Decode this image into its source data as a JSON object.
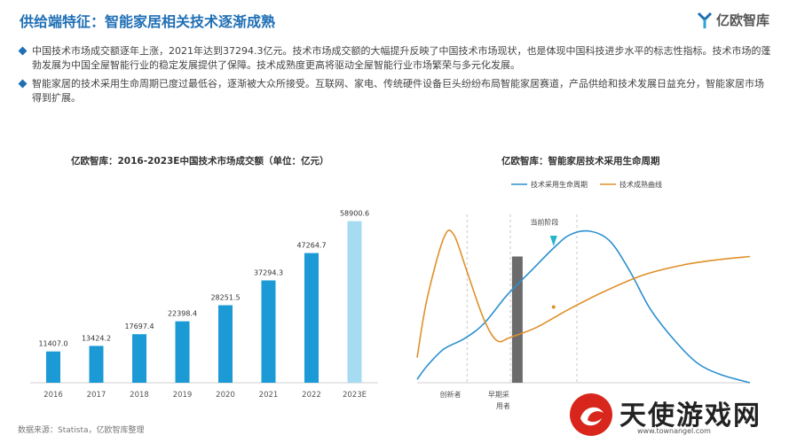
{
  "page": {
    "title": "供给端特征：智能家居相关技术逐渐成熟",
    "brand_logo": "亿欧智库",
    "bullets": [
      "中国技术市场成交额逐年上涨，2021年达到37294.3亿元。技术市场成交额的大幅提升反映了中国技术市场现状，也是体现中国科技进步水平的标志性指标。技术市场的蓬勃发展为中国全屋智能行业的稳定发展提供了保障。技术成熟度更高将驱动全屋智能行业市场繁荣与多元化发展。",
      "智能家居的技术采用生命周期已度过最低谷，逐渐被大众所接受。互联网、家电、传统硬件设备巨头纷纷布局智能家居赛道，产品供给和技术发展日益充分，智能家居市场得到扩展。"
    ],
    "source": "数据来源：Statista，亿欧智库整理",
    "site_logo": {
      "name": "天使游戏网",
      "url": "www.townangel.com"
    }
  },
  "colors": {
    "accent": "#1f6fb5",
    "bar": "#1b9ad6",
    "bar_estimate": "#a6dcf2",
    "life_cycle": "#2b8fd0",
    "maturity": "#e0902a",
    "current_band": "#6b6b6b"
  },
  "chart_data": [
    {
      "type": "bar",
      "title": "亿欧智库：2016-2023E中国技术市场成交额（单位：亿元）",
      "categories": [
        "2016",
        "2017",
        "2018",
        "2019",
        "2020",
        "2021",
        "2022",
        "2023E"
      ],
      "values": [
        11407.0,
        13424.2,
        17697.4,
        22398.4,
        28251.5,
        37294.3,
        47264.7,
        58900.6
      ],
      "value_labels": [
        "11407.0",
        "13424.2",
        "17697.4",
        "22398.4",
        "28251.5",
        "37294.3",
        "47264.7",
        "58900.6"
      ],
      "estimate_index": 7,
      "ylim": [
        0,
        62000
      ]
    },
    {
      "type": "line",
      "title": "亿欧智库：智能家居技术采用生命周期",
      "legend_position": "top",
      "series": [
        {
          "name": "技术采用生命周期",
          "points": [
            [
              0,
              0.02
            ],
            [
              0.03,
              0.1
            ],
            [
              0.08,
              0.2
            ],
            [
              0.14,
              0.26
            ],
            [
              0.2,
              0.35
            ],
            [
              0.27,
              0.52
            ],
            [
              0.34,
              0.66
            ],
            [
              0.41,
              0.8
            ],
            [
              0.46,
              0.88
            ],
            [
              0.52,
              0.9
            ],
            [
              0.58,
              0.84
            ],
            [
              0.64,
              0.66
            ],
            [
              0.7,
              0.44
            ],
            [
              0.77,
              0.26
            ],
            [
              0.84,
              0.12
            ],
            [
              0.91,
              0.05
            ],
            [
              1.0,
              0.0
            ]
          ]
        },
        {
          "name": "技术成熟曲线",
          "points": [
            [
              0.0,
              0.15
            ],
            [
              0.03,
              0.5
            ],
            [
              0.08,
              0.86
            ],
            [
              0.11,
              0.88
            ],
            [
              0.15,
              0.66
            ],
            [
              0.2,
              0.38
            ],
            [
              0.24,
              0.25
            ],
            [
              0.28,
              0.27
            ],
            [
              0.36,
              0.33
            ],
            [
              0.45,
              0.43
            ],
            [
              0.56,
              0.54
            ],
            [
              0.68,
              0.64
            ],
            [
              0.8,
              0.7
            ],
            [
              0.9,
              0.73
            ],
            [
              1.0,
              0.75
            ]
          ]
        }
      ],
      "annotations": {
        "current_stage": "当前阶段"
      },
      "x_labels": [
        "创新者",
        "早期采用者"
      ]
    }
  ]
}
